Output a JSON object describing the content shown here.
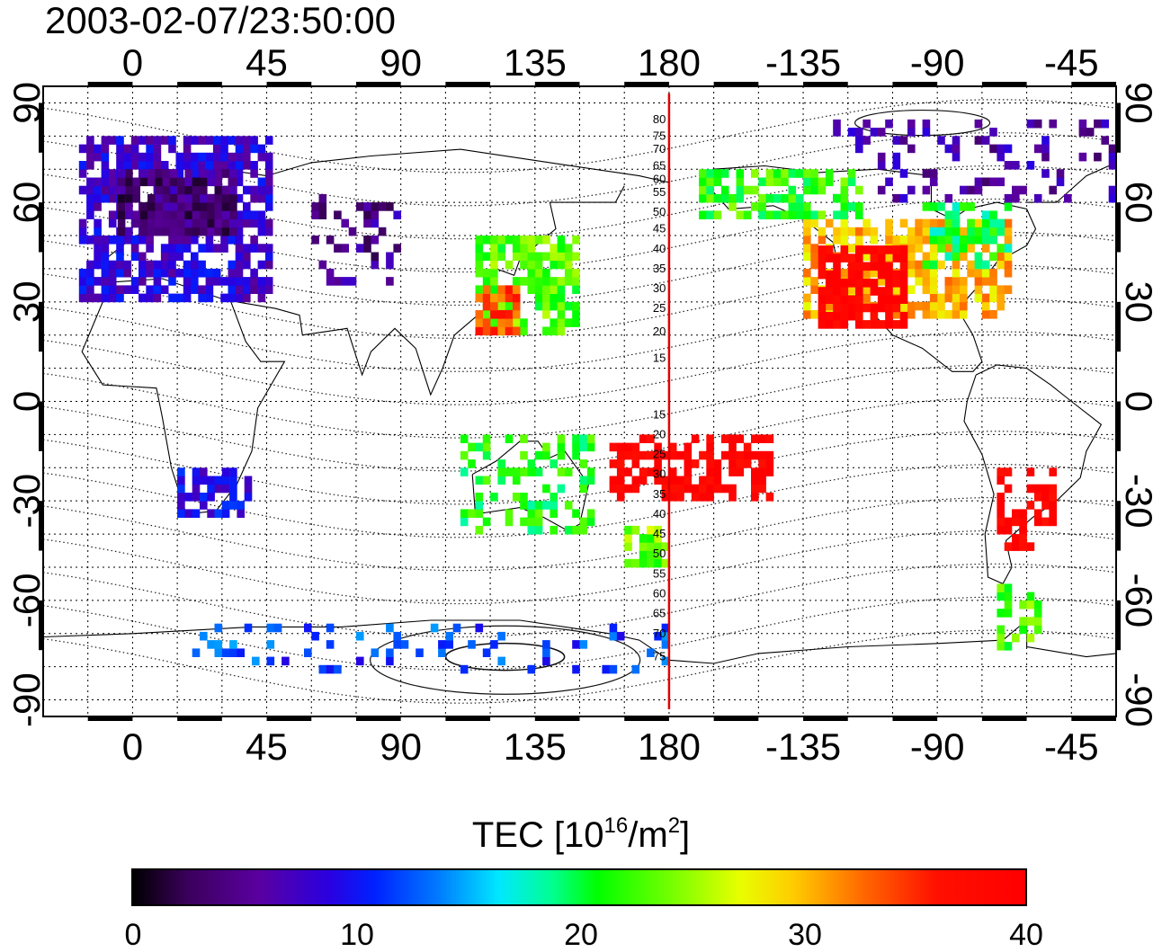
{
  "timestamp": "2003-02-07/23:50:00",
  "map": {
    "lon_min": -30,
    "lon_max": 330,
    "lat_min": -95,
    "lat_max": 95,
    "lon_tick_values": [
      0,
      45,
      90,
      135,
      180,
      225,
      270,
      315
    ],
    "lon_tick_labels": [
      "0",
      "45",
      "90",
      "135",
      "180",
      "-135",
      "-90",
      "-45"
    ],
    "lat_tick_values": [
      90,
      60,
      30,
      0,
      -30,
      -60,
      -90
    ],
    "lat_tick_labels": [
      "90",
      "60",
      "30",
      "0",
      "-30",
      "-60",
      "-90"
    ],
    "grid_lon_step": 15,
    "grid_lat_step": 10,
    "reference_meridian_lon": 180,
    "reference_meridian_color": "#e00000",
    "magnetic_latitude_labels": [
      {
        "lat": 85,
        "text": "80"
      },
      {
        "lat": 80,
        "text": "75"
      },
      {
        "lat": 76,
        "text": "70"
      },
      {
        "lat": 71,
        "text": "65"
      },
      {
        "lat": 67,
        "text": "60"
      },
      {
        "lat": 63,
        "text": "55"
      },
      {
        "lat": 57,
        "text": "50"
      },
      {
        "lat": 52,
        "text": "45"
      },
      {
        "lat": 46,
        "text": "40"
      },
      {
        "lat": 40,
        "text": "35"
      },
      {
        "lat": 34,
        "text": "30"
      },
      {
        "lat": 28,
        "text": "25"
      },
      {
        "lat": 21,
        "text": "20"
      },
      {
        "lat": 13,
        "text": "15"
      },
      {
        "lat": -4,
        "text": "15"
      },
      {
        "lat": -10,
        "text": "20"
      },
      {
        "lat": -16,
        "text": "25"
      },
      {
        "lat": -22,
        "text": "30"
      },
      {
        "lat": -28,
        "text": "35"
      },
      {
        "lat": -34,
        "text": "40"
      },
      {
        "lat": -40,
        "text": "45"
      },
      {
        "lat": -46,
        "text": "50"
      },
      {
        "lat": -52,
        "text": "55"
      },
      {
        "lat": -58,
        "text": "60"
      },
      {
        "lat": -64,
        "text": "65"
      },
      {
        "lat": -70,
        "text": "70"
      },
      {
        "lat": -77,
        "text": "75"
      }
    ]
  },
  "tec_regions": [
    {
      "lon0": -18,
      "lon1": 45,
      "lat0": 30,
      "lat1": 80,
      "tec": 8,
      "density": 0.7
    },
    {
      "lon0": -5,
      "lon1": 35,
      "lat0": 50,
      "lat1": 70,
      "tec": 4,
      "density": 0.9
    },
    {
      "lon0": 60,
      "lon1": 90,
      "lat0": 35,
      "lat1": 65,
      "tec": 5,
      "density": 0.2
    },
    {
      "lon0": 115,
      "lon1": 150,
      "lat0": 20,
      "lat1": 50,
      "tec": 23,
      "density": 0.7
    },
    {
      "lon0": 115,
      "lon1": 130,
      "lat0": 20,
      "lat1": 35,
      "tec": 34,
      "density": 0.8
    },
    {
      "lon0": 225,
      "lon1": 295,
      "lat0": 25,
      "lat1": 55,
      "tec": 30,
      "density": 0.7
    },
    {
      "lon0": 230,
      "lon1": 260,
      "lat0": 22,
      "lat1": 45,
      "tec": 39,
      "density": 0.8
    },
    {
      "lon0": 265,
      "lon1": 295,
      "lat0": 40,
      "lat1": 60,
      "tec": 20,
      "density": 0.6
    },
    {
      "lon0": 235,
      "lon1": 330,
      "lat0": 60,
      "lat1": 85,
      "tec": 6,
      "density": 0.25
    },
    {
      "lon0": 190,
      "lon1": 245,
      "lat0": 55,
      "lat1": 70,
      "tec": 22,
      "density": 0.6
    },
    {
      "lon0": 160,
      "lon1": 215,
      "lat0": -30,
      "lat1": -10,
      "tec": 39,
      "density": 0.6
    },
    {
      "lon0": 110,
      "lon1": 155,
      "lat0": -40,
      "lat1": -10,
      "tec": 21,
      "density": 0.35
    },
    {
      "lon0": 165,
      "lon1": 180,
      "lat0": -50,
      "lat1": -38,
      "tec": 24,
      "density": 0.7
    },
    {
      "lon0": 290,
      "lon1": 310,
      "lat0": -45,
      "lat1": -20,
      "tec": 39,
      "density": 0.6
    },
    {
      "lon0": 290,
      "lon1": 305,
      "lat0": -75,
      "lat1": -55,
      "tec": 23,
      "density": 0.5
    },
    {
      "lon0": 15,
      "lon1": 40,
      "lat0": -35,
      "lat1": -20,
      "tec": 9,
      "density": 0.55
    },
    {
      "lon0": 20,
      "lon1": 180,
      "lat0": -82,
      "lat1": -68,
      "tec": 12,
      "density": 0.15
    }
  ],
  "colorbar": {
    "title": "TEC  [10",
    "title_exponent": "16",
    "title_unit": "/m",
    "title_unit_exponent": "2",
    "title_close": "]",
    "min": 0,
    "max": 40,
    "tick_labels": [
      "0",
      "10",
      "20",
      "30",
      "40"
    ]
  }
}
